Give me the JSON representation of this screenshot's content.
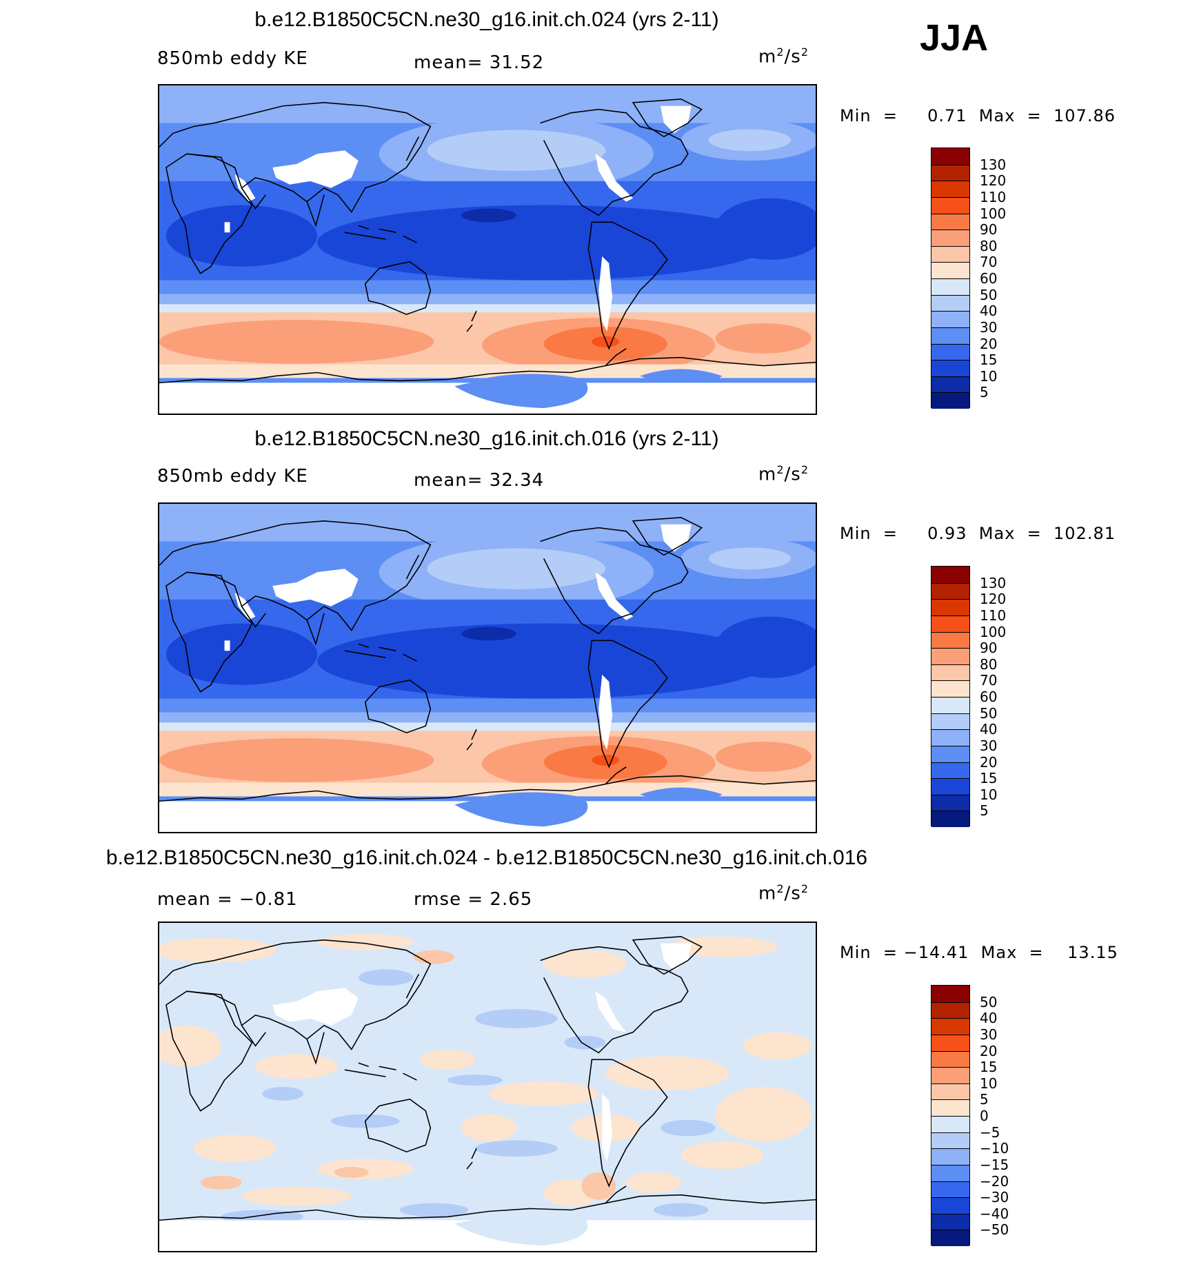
{
  "season_label": "JJA",
  "panels": [
    {
      "title": "b.e12.B1850C5CN.ne30_g16.init.ch.024 (yrs 2-11)",
      "left_label": "850mb  eddy KE",
      "center_label": "mean=   31.52",
      "units_base": "m",
      "units_sup": "2",
      "units_mid": "/s",
      "units_sup2": "2",
      "minmax": "Min  =     0.71  Max  =  107.86",
      "kind": "full",
      "colorbar": {
        "labels": [
          "130",
          "120",
          "110",
          "100",
          "90",
          "80",
          "70",
          "60",
          "50",
          "40",
          "30",
          "20",
          "15",
          "10",
          "5"
        ],
        "colors": [
          "#8b0000",
          "#b22200",
          "#d93800",
          "#f75018",
          "#fa7a45",
          "#fb9f78",
          "#fcc6a8",
          "#fde4cf",
          "#d8e8f8",
          "#b4cdf7",
          "#8eb1f8",
          "#5c8ef4",
          "#3568ec",
          "#1a46d8",
          "#0d2ca8",
          "#061a7e"
        ]
      }
    },
    {
      "title": "b.e12.B1850C5CN.ne30_g16.init.ch.016 (yrs 2-11)",
      "left_label": "850mb  eddy KE",
      "center_label": "mean=   32.34",
      "units_base": "m",
      "units_sup": "2",
      "units_mid": "/s",
      "units_sup2": "2",
      "minmax": "Min  =     0.93  Max  =  102.81",
      "kind": "full",
      "colorbar": {
        "labels": [
          "130",
          "120",
          "110",
          "100",
          "90",
          "80",
          "70",
          "60",
          "50",
          "40",
          "30",
          "20",
          "15",
          "10",
          "5"
        ],
        "colors": [
          "#8b0000",
          "#b22200",
          "#d93800",
          "#f75018",
          "#fa7a45",
          "#fb9f78",
          "#fcc6a8",
          "#fde4cf",
          "#d8e8f8",
          "#b4cdf7",
          "#8eb1f8",
          "#5c8ef4",
          "#3568ec",
          "#1a46d8",
          "#0d2ca8",
          "#061a7e"
        ]
      }
    },
    {
      "title": "b.e12.B1850C5CN.ne30_g16.init.ch.024 - b.e12.B1850C5CN.ne30_g16.init.ch.016",
      "left_label": "mean  =   −0.81",
      "center_label": "rmse  =     2.65",
      "units_base": "m",
      "units_sup": "2",
      "units_mid": "/s",
      "units_sup2": "2",
      "minmax": "Min  = −14.41  Max  =    13.15",
      "kind": "diff",
      "colorbar": {
        "labels": [
          "50",
          "40",
          "30",
          "20",
          "15",
          "10",
          "5",
          "0",
          "−5",
          "−10",
          "−15",
          "−20",
          "−30",
          "−40",
          "−50"
        ],
        "colors": [
          "#8b0000",
          "#b22200",
          "#d93800",
          "#f75018",
          "#fa7a45",
          "#fb9f78",
          "#fcc6a8",
          "#fde4cf",
          "#d8e8f8",
          "#b4cdf7",
          "#8eb1f8",
          "#5c8ef4",
          "#3568ec",
          "#1a46d8",
          "#0d2ca8",
          "#061a7e"
        ]
      }
    }
  ]
}
